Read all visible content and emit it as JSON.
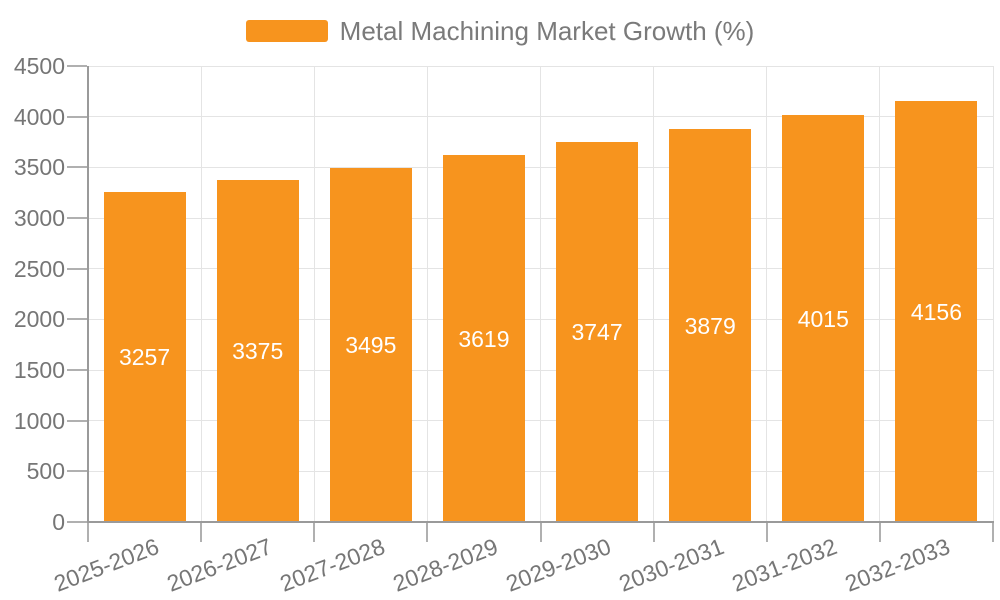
{
  "legend": {
    "items": [
      {
        "label": "Metal Machining Market Growth (%)",
        "color": "#f7941e"
      }
    ]
  },
  "chart_data": {
    "type": "bar",
    "title": "Metal Machining Market Growth (%)",
    "categories": [
      "2025-2026",
      "2026-2027",
      "2027-2028",
      "2028-2029",
      "2029-2030",
      "2030-2031",
      "2031-2032",
      "2032-2033"
    ],
    "series": [
      {
        "name": "Metal Machining Market Growth (%)",
        "color": "#f7941e",
        "values": [
          3257,
          3375,
          3495,
          3619,
          3747,
          3879,
          4015,
          4156
        ]
      }
    ],
    "xlabel": "",
    "ylabel": "",
    "ylim": [
      0,
      4500
    ],
    "ytick_interval": 500,
    "yticks": [
      0,
      500,
      1000,
      1500,
      2000,
      2500,
      3000,
      3500,
      4000,
      4500
    ],
    "grid": true,
    "legend_position": "top-center",
    "value_label_position": "inside-center",
    "x_label_rotation_deg": -21
  },
  "style": {
    "background": "#ffffff",
    "bar_color": "#f7941e",
    "axis_text_color": "#767676",
    "legend_text_color": "#7a7a7a",
    "grid_line_color": "#e4e4e4",
    "axis_line_color": "#9a9a9a",
    "tick_mark_color": "#b0b0b0",
    "value_text_color": "#ffffff"
  }
}
